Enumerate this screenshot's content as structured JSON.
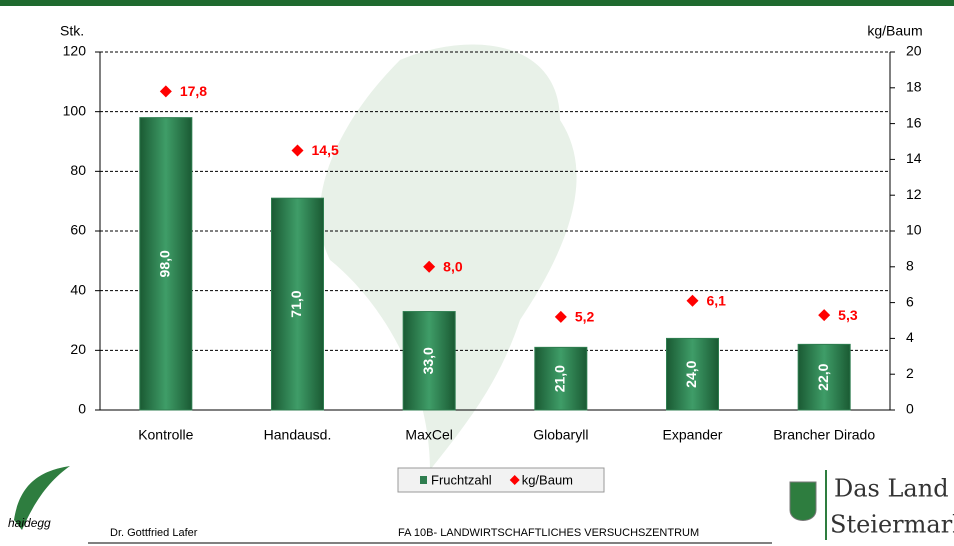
{
  "chart_data": {
    "type": "bar",
    "y_label": "Stk.",
    "y2_label": "kg/Baum",
    "categories": [
      "Kontrolle",
      "Handausd.",
      "MaxCel",
      "Globaryll",
      "Expander",
      "Brancher Dirado"
    ],
    "series": [
      {
        "name": "Fruchtzahl",
        "type": "bar",
        "color": "#2e7d4f",
        "values": [
          98,
          71,
          33,
          21,
          24,
          22
        ],
        "value_labels": [
          "98,0",
          "71,0",
          "33,0",
          "21,0",
          "24,0",
          "22,0"
        ]
      },
      {
        "name": "kg/Baum",
        "type": "scatter",
        "axis": "y2",
        "color": "#ff0000",
        "values": [
          17.8,
          14.5,
          8.0,
          5.2,
          6.1,
          5.3
        ],
        "value_labels": [
          "17,8",
          "14,5",
          "8,0",
          "5,2",
          "6,1",
          "5,3"
        ]
      }
    ],
    "ylim": [
      0,
      120
    ],
    "yticks": [
      0,
      20,
      40,
      60,
      80,
      100,
      120
    ],
    "y2lim": [
      0,
      20
    ],
    "y2ticks": [
      0,
      2,
      4,
      6,
      8,
      10,
      12,
      14,
      16,
      18,
      20
    ],
    "grid": true,
    "legend": "bottom"
  },
  "footer": {
    "logo_left": "haidegg",
    "author": "Dr. Gottfried Lafer",
    "institution": "FA 10B- LANDWIRTSCHAFTLICHES VERSUCHSZENTRUM",
    "logo_right_1": "Das Land",
    "logo_right_2": "Steiermark"
  }
}
